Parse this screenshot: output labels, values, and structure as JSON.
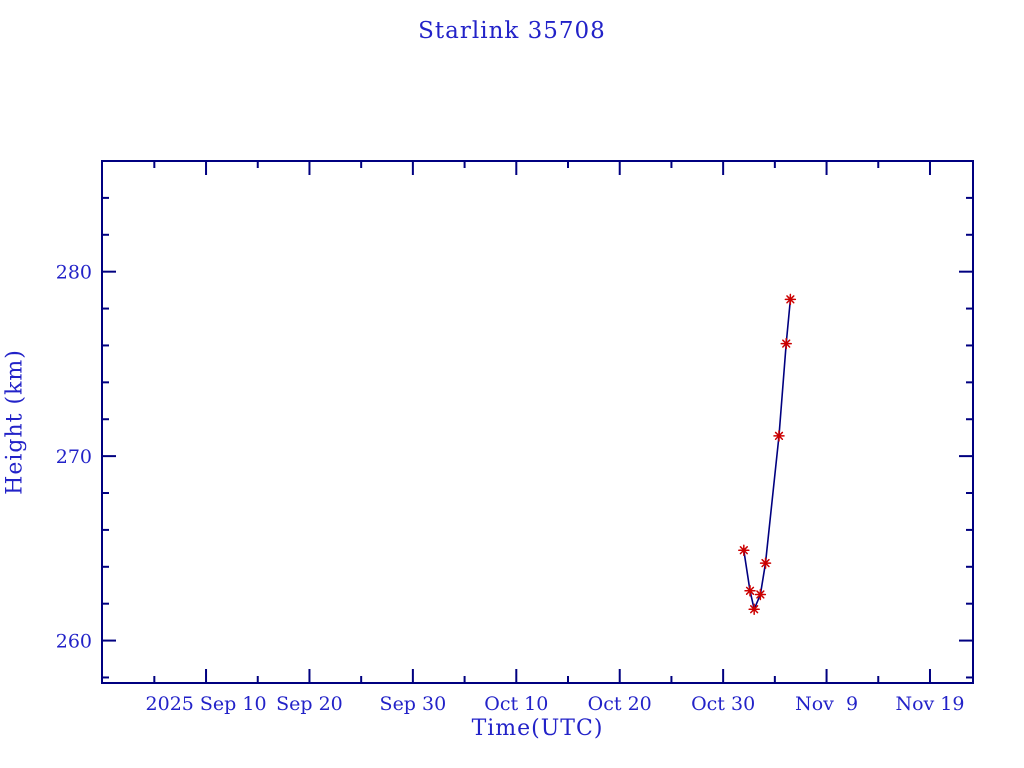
{
  "colors": {
    "text": "#2222c8",
    "frame": "#000080",
    "line": "#000080",
    "marker": "#cc0000",
    "background": "#ffffff"
  },
  "chart_data": {
    "type": "line",
    "title": "Starlink 35708",
    "xlabel": "Time(UTC)",
    "ylabel": "Height (km)",
    "grid": false,
    "legend": null,
    "x_axis": {
      "unit": "days relative to 2025 Sep 10",
      "range_days": [
        -10.06,
        74.16
      ],
      "minor_tick_step_days": 5,
      "major_ticks": [
        {
          "day": 0,
          "label": "2025 Sep 10"
        },
        {
          "day": 10,
          "label": "Sep 20"
        },
        {
          "day": 20,
          "label": "Sep 30"
        },
        {
          "day": 30,
          "label": "Oct 10"
        },
        {
          "day": 40,
          "label": "Oct 20"
        },
        {
          "day": 50,
          "label": "Oct 30"
        },
        {
          "day": 60,
          "label": "Nov  9"
        },
        {
          "day": 70,
          "label": "Nov 19"
        }
      ]
    },
    "y_axis": {
      "unit": "km",
      "range_km": [
        257.7,
        286.0
      ],
      "minor_tick_step_km": 2,
      "major_ticks": [
        260,
        270,
        280
      ]
    },
    "series": [
      {
        "name": "height",
        "marker": "asterisk",
        "points": [
          {
            "day": 52.0,
            "date_approx": "2025 Nov 1",
            "height_km": 264.9
          },
          {
            "day": 52.6,
            "date_approx": "2025 Nov 1",
            "height_km": 262.7
          },
          {
            "day": 53.0,
            "date_approx": "2025 Nov 2",
            "height_km": 261.7
          },
          {
            "day": 53.6,
            "date_approx": "2025 Nov 2",
            "height_km": 262.5
          },
          {
            "day": 54.1,
            "date_approx": "2025 Nov 3",
            "height_km": 264.2
          },
          {
            "day": 55.4,
            "date_approx": "2025 Nov 4",
            "height_km": 271.1
          },
          {
            "day": 56.1,
            "date_approx": "2025 Nov 5",
            "height_km": 276.1
          },
          {
            "day": 56.5,
            "date_approx": "2025 Nov 5",
            "height_km": 278.5
          }
        ]
      }
    ]
  }
}
